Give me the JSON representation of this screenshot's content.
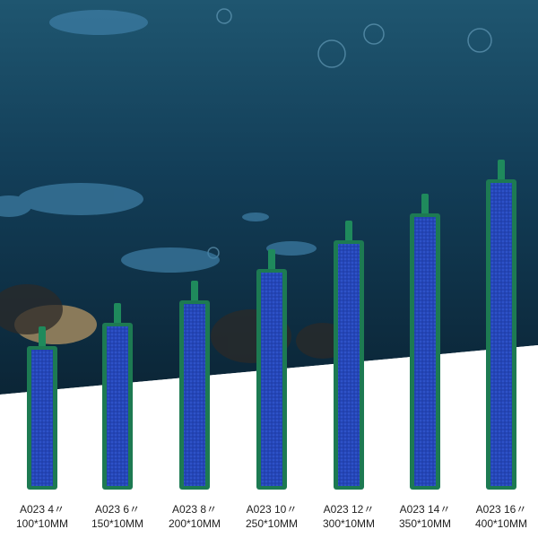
{
  "products": [
    {
      "model": "A023 4〃",
      "size": "100*10MM"
    },
    {
      "model": "A023 6〃",
      "size": "150*10MM"
    },
    {
      "model": "A023 8〃",
      "size": "200*10MM"
    },
    {
      "model": "A023 10〃",
      "size": "250*10MM"
    },
    {
      "model": "A023 12〃",
      "size": "300*10MM"
    },
    {
      "model": "A023 14〃",
      "size": "350*10MM"
    },
    {
      "model": "A023 16〃",
      "size": "400*10MM"
    }
  ]
}
